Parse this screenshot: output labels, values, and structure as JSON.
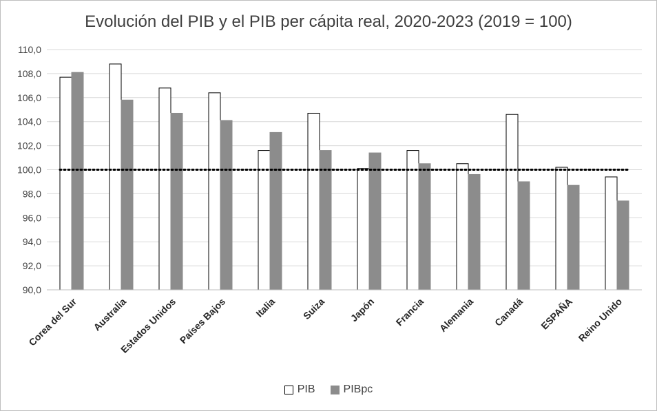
{
  "chart_data": {
    "type": "bar",
    "title": "Evolución del PIB y el PIB per cápita real, 2020-2023 (2019 = 100)",
    "categories": [
      "Corea del Sur",
      "Australia",
      "Estados Unidos",
      "Países Bajos",
      "Italia",
      "Suiza",
      "Japón",
      "Francia",
      "Alemania",
      "Canadá",
      "ESPAÑA",
      "Reino Unido"
    ],
    "series": [
      {
        "name": "PIB",
        "values": [
          107.7,
          108.8,
          106.8,
          106.4,
          101.6,
          104.7,
          100.1,
          101.6,
          100.5,
          104.6,
          100.2,
          99.4
        ],
        "color": "#ffffff",
        "stroke": "#000000"
      },
      {
        "name": "PIBpc",
        "values": [
          108.1,
          105.8,
          104.7,
          104.1,
          103.1,
          101.6,
          101.4,
          100.5,
          99.6,
          99.0,
          98.7,
          97.4
        ],
        "color": "#8c8c8c",
        "stroke": "#8c8c8c"
      }
    ],
    "reference_line": 100,
    "ylim": [
      90,
      110
    ],
    "yticks": [
      "90,0",
      "92,0",
      "94,0",
      "96,0",
      "98,0",
      "100,0",
      "102,0",
      "104,0",
      "106,0",
      "108,0",
      "110,0"
    ],
    "grid": true,
    "legend_position": "bottom",
    "xlabel": "",
    "ylabel": ""
  }
}
